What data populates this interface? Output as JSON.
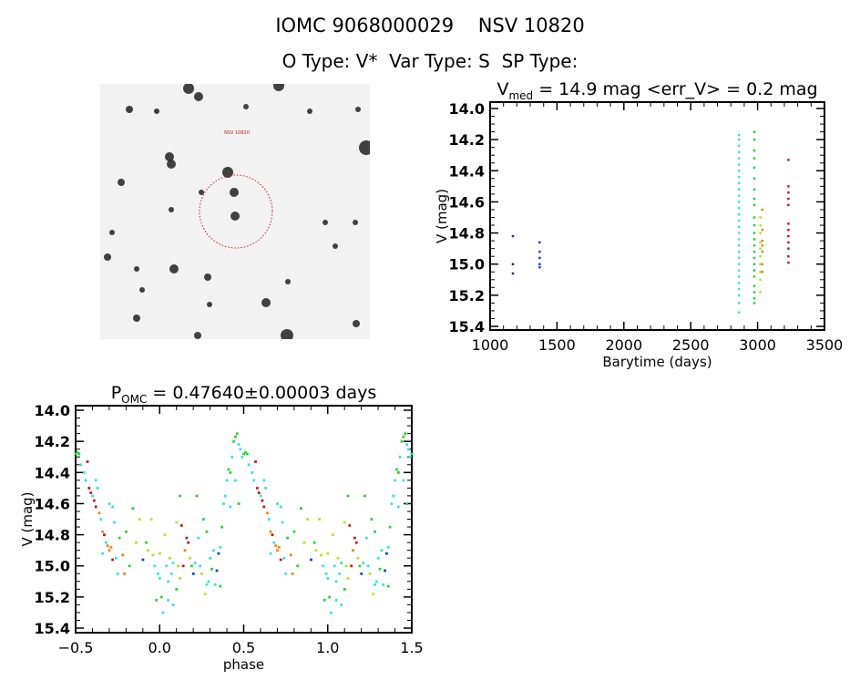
{
  "header": {
    "title": "IOMC 9068000029    NSV 10820",
    "subtitle": "O Type: V*  Var Type: S  SP Type:"
  },
  "colors": {
    "c": "#3ee0e0",
    "g": "#2ed040",
    "y": "#b8e030",
    "o": "#e08a20",
    "r": "#c02020",
    "b": "#1848c0",
    "p": "#402080"
  },
  "chart_data": [
    {
      "type": "scatter",
      "title_main": "V",
      "title_sub": "med",
      "title_rest": " = 14.9 mag <err_V> = 0.2 mag",
      "xlabel": "Barytime (days)",
      "ylabel": "V (mag)",
      "xlim": [
        1000,
        3500
      ],
      "ylim": [
        14.0,
        15.4
      ],
      "y_inverted": true,
      "xticks": [
        "1000",
        "1500",
        "2000",
        "2500",
        "3000",
        "3500"
      ],
      "yticks": [
        "14.0",
        "14.2",
        "14.4",
        "14.6",
        "14.8",
        "15.0",
        "15.2",
        "15.4"
      ],
      "series": [
        {
          "t": 1170,
          "color": "p",
          "mags": [
            14.82,
            15.0,
            15.06
          ]
        },
        {
          "t": 1370,
          "color": "b",
          "mags": [
            14.86,
            14.92,
            14.96,
            15.0,
            15.02
          ]
        },
        {
          "t": 2860,
          "color": "c",
          "mags": [
            14.17,
            14.2,
            14.24,
            14.28,
            14.32,
            14.36,
            14.4,
            14.44,
            14.48,
            14.52,
            14.56,
            14.6,
            14.64,
            14.68,
            14.72,
            14.76,
            14.8,
            14.84,
            14.88,
            14.92,
            14.96,
            15.0,
            15.04,
            15.08,
            15.12,
            15.16,
            15.2,
            15.25,
            15.31
          ]
        },
        {
          "t": 2975,
          "color": "g",
          "mags": [
            14.15,
            14.2,
            14.27,
            14.32,
            14.38,
            14.45,
            14.52,
            14.58,
            14.62,
            14.7,
            14.75,
            14.8,
            14.84,
            14.88,
            14.92,
            14.96,
            15.0,
            15.04,
            15.08,
            15.14,
            15.18,
            15.22,
            15.25
          ]
        },
        {
          "t": 3020,
          "color": "y",
          "mags": [
            14.7,
            14.75,
            14.8,
            14.86,
            14.9,
            14.95,
            15.0,
            15.05,
            15.1,
            15.18
          ]
        },
        {
          "t": 3035,
          "color": "o",
          "mags": [
            14.65,
            14.78,
            14.85,
            14.88,
            14.92,
            15.0,
            15.05
          ]
        },
        {
          "t": 3230,
          "color": "r",
          "mags": [
            14.33,
            14.5,
            14.54,
            14.58,
            14.62,
            14.74,
            14.78,
            14.82,
            14.86,
            14.9,
            14.95,
            14.99
          ]
        }
      ]
    },
    {
      "type": "scatter",
      "title_main": "P",
      "title_sub": "OMC",
      "title_rest": " = 0.47640±0.00003 days",
      "xlabel": "phase",
      "ylabel": "V (mag)",
      "xlim": [
        -0.5,
        1.5
      ],
      "ylim": [
        14.0,
        15.4
      ],
      "y_inverted": true,
      "xticks": [
        "-0.5",
        "0.0",
        "0.5",
        "1.0",
        "1.5"
      ],
      "yticks": [
        "14.0",
        "14.2",
        "14.4",
        "14.6",
        "14.8",
        "15.0",
        "15.2",
        "15.4"
      ],
      "points_note": "phase, V, color; each point plotted at phase-1, phase, phase+1 within range",
      "points": [
        [
          0.38,
          14.6,
          "c"
        ],
        [
          0.39,
          14.55,
          "c"
        ],
        [
          0.4,
          14.45,
          "c"
        ],
        [
          0.41,
          14.38,
          "g"
        ],
        [
          0.42,
          14.4,
          "g"
        ],
        [
          0.43,
          14.3,
          "c"
        ],
        [
          0.44,
          14.2,
          "g"
        ],
        [
          0.45,
          14.17,
          "g"
        ],
        [
          0.46,
          14.15,
          "g"
        ],
        [
          0.47,
          14.22,
          "c"
        ],
        [
          0.48,
          14.25,
          "c"
        ],
        [
          0.49,
          14.3,
          "c"
        ],
        [
          0.5,
          14.28,
          "g"
        ],
        [
          0.51,
          14.27,
          "g"
        ],
        [
          0.52,
          14.28,
          "g"
        ],
        [
          0.42,
          14.62,
          "c"
        ],
        [
          0.45,
          14.45,
          "c"
        ],
        [
          0.47,
          14.6,
          "g"
        ],
        [
          0.53,
          14.35,
          "c"
        ],
        [
          0.55,
          14.4,
          "c"
        ],
        [
          0.56,
          14.45,
          "c"
        ],
        [
          0.57,
          14.33,
          "r"
        ],
        [
          0.58,
          14.5,
          "r"
        ],
        [
          0.59,
          14.53,
          "r"
        ],
        [
          0.6,
          14.55,
          "c"
        ],
        [
          0.61,
          14.58,
          "r"
        ],
        [
          0.62,
          14.62,
          "r"
        ],
        [
          0.63,
          14.5,
          "c"
        ],
        [
          0.64,
          14.66,
          "o"
        ],
        [
          0.65,
          14.7,
          "c"
        ],
        [
          0.66,
          14.78,
          "o"
        ],
        [
          0.67,
          14.8,
          "r"
        ],
        [
          0.68,
          14.85,
          "c"
        ],
        [
          0.69,
          14.87,
          "o"
        ],
        [
          0.7,
          14.9,
          "o"
        ],
        [
          0.71,
          14.88,
          "o"
        ],
        [
          0.72,
          14.96,
          "r"
        ],
        [
          0.72,
          14.62,
          "c"
        ],
        [
          0.73,
          14.72,
          "c"
        ],
        [
          0.74,
          14.95,
          "c"
        ],
        [
          0.75,
          15.05,
          "c"
        ],
        [
          0.76,
          14.82,
          "g"
        ],
        [
          0.78,
          14.93,
          "o"
        ],
        [
          0.79,
          15.05,
          "o"
        ],
        [
          0.8,
          14.78,
          "g"
        ],
        [
          0.82,
          15.0,
          "g"
        ],
        [
          0.84,
          14.63,
          "g"
        ],
        [
          0.86,
          14.85,
          "y"
        ],
        [
          0.88,
          14.7,
          "y"
        ],
        [
          0.9,
          14.96,
          "b"
        ],
        [
          0.92,
          14.85,
          "g"
        ],
        [
          0.93,
          14.9,
          "y"
        ],
        [
          0.95,
          14.7,
          "y"
        ],
        [
          0.96,
          14.93,
          "y"
        ],
        [
          0.97,
          15.0,
          "c"
        ],
        [
          0.98,
          15.22,
          "g"
        ],
        [
          0.99,
          15.05,
          "c"
        ],
        [
          0.62,
          14.45,
          "c"
        ],
        [
          0.66,
          14.92,
          "c"
        ],
        [
          0.7,
          14.6,
          "c"
        ],
        [
          0.0,
          14.92,
          "y"
        ],
        [
          0.0,
          15.08,
          "c"
        ],
        [
          0.01,
          15.2,
          "g"
        ],
        [
          0.02,
          15.3,
          "c"
        ],
        [
          0.03,
          14.8,
          "y"
        ],
        [
          0.04,
          15.0,
          "c"
        ],
        [
          0.05,
          15.1,
          "c"
        ],
        [
          0.06,
          14.95,
          "y"
        ],
        [
          0.07,
          15.05,
          "c"
        ],
        [
          0.08,
          15.25,
          "c"
        ],
        [
          0.08,
          14.98,
          "c"
        ],
        [
          0.1,
          15.15,
          "g"
        ],
        [
          0.1,
          14.72,
          "y"
        ],
        [
          0.11,
          15.0,
          "y"
        ],
        [
          0.12,
          14.55,
          "g"
        ],
        [
          0.13,
          14.74,
          "r"
        ],
        [
          0.14,
          15.0,
          "r"
        ],
        [
          0.15,
          14.9,
          "o"
        ],
        [
          0.16,
          14.82,
          "r"
        ],
        [
          0.17,
          14.85,
          "r"
        ],
        [
          0.18,
          14.95,
          "y"
        ],
        [
          0.2,
          15.05,
          "b"
        ],
        [
          0.21,
          14.98,
          "c"
        ],
        [
          0.22,
          14.55,
          "g"
        ],
        [
          0.23,
          14.82,
          "c"
        ],
        [
          0.24,
          15.0,
          "c"
        ],
        [
          0.25,
          15.05,
          "y"
        ],
        [
          0.26,
          14.7,
          "g"
        ],
        [
          0.27,
          15.18,
          "y"
        ],
        [
          0.28,
          14.78,
          "g"
        ],
        [
          0.29,
          15.1,
          "c"
        ],
        [
          0.3,
          14.95,
          "c"
        ],
        [
          0.31,
          15.02,
          "g"
        ],
        [
          0.32,
          14.9,
          "c"
        ],
        [
          0.33,
          15.12,
          "c"
        ],
        [
          0.34,
          15.03,
          "b"
        ],
        [
          0.35,
          14.92,
          "b"
        ],
        [
          0.36,
          15.13,
          "g"
        ],
        [
          0.37,
          14.75,
          "g"
        ],
        [
          0.36,
          14.88,
          "c"
        ],
        [
          0.05,
          15.22,
          "c"
        ],
        [
          0.12,
          15.08,
          "y"
        ],
        [
          0.19,
          15.0,
          "g"
        ],
        [
          0.28,
          15.12,
          "c"
        ]
      ]
    }
  ]
}
